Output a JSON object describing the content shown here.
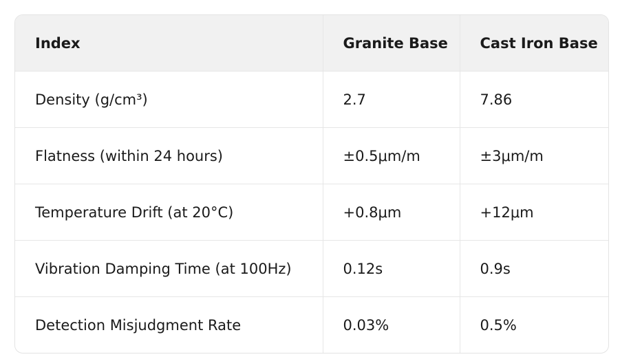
{
  "table": {
    "header": [
      "Index",
      "Granite Base",
      "Cast Iron Base"
    ],
    "rows": [
      [
        "Density (g/cm³)",
        "2.7",
        "7.86"
      ],
      [
        "Flatness (within 24 hours)",
        "±0.5μm/m",
        "±3μm/m"
      ],
      [
        "Temperature Drift (at 20°C)",
        "+0.8μm",
        "+12μm"
      ],
      [
        "Vibration Damping Time (at 100Hz)",
        "0.12s",
        "0.9s"
      ],
      [
        "Detection Misjudgment Rate",
        "0.03%",
        "0.5%"
      ]
    ]
  }
}
